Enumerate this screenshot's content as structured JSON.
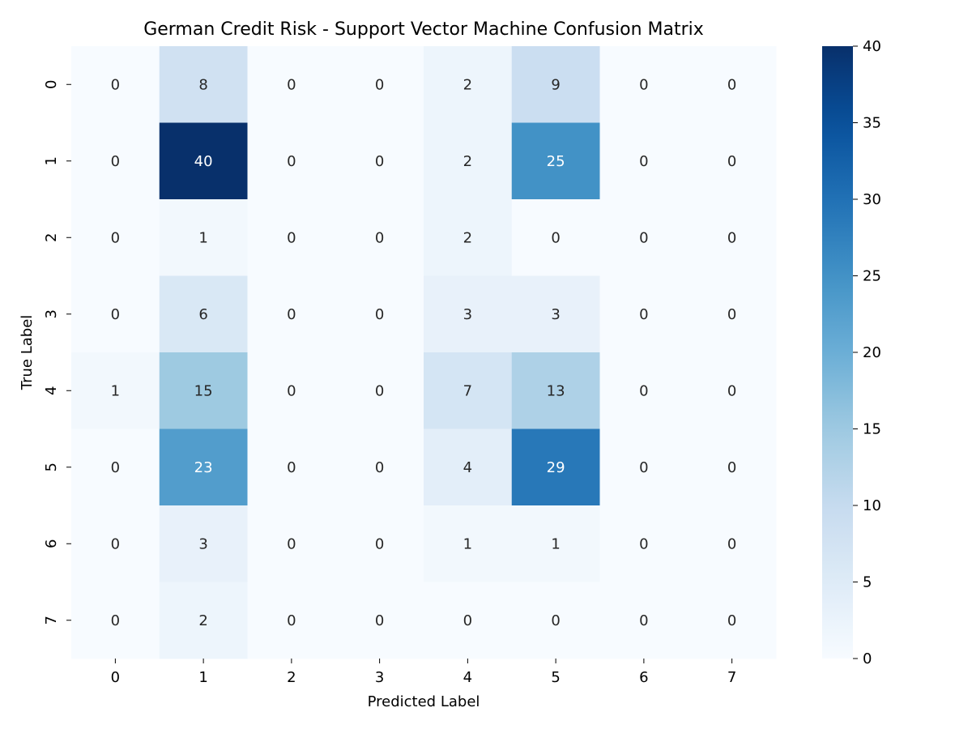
{
  "chart_data": {
    "type": "heatmap",
    "title": "German Credit Risk - Support Vector Machine Confusion Matrix",
    "xlabel": "Predicted Label",
    "ylabel": "True Label",
    "x_categories": [
      "0",
      "1",
      "2",
      "3",
      "4",
      "5",
      "6",
      "7"
    ],
    "y_categories": [
      "0",
      "1",
      "2",
      "3",
      "4",
      "5",
      "6",
      "7"
    ],
    "values": [
      [
        0,
        8,
        0,
        0,
        2,
        9,
        0,
        0
      ],
      [
        0,
        40,
        0,
        0,
        2,
        25,
        0,
        0
      ],
      [
        0,
        1,
        0,
        0,
        2,
        0,
        0,
        0
      ],
      [
        0,
        6,
        0,
        0,
        3,
        3,
        0,
        0
      ],
      [
        1,
        15,
        0,
        0,
        7,
        13,
        0,
        0
      ],
      [
        0,
        23,
        0,
        0,
        4,
        29,
        0,
        0
      ],
      [
        0,
        3,
        0,
        0,
        1,
        1,
        0,
        0
      ],
      [
        0,
        2,
        0,
        0,
        0,
        0,
        0,
        0
      ]
    ],
    "colorbar": {
      "range": [
        0,
        40
      ],
      "ticks": [
        "0",
        "5",
        "10",
        "15",
        "20",
        "25",
        "30",
        "35",
        "40"
      ],
      "colormap": "Blues"
    },
    "grid": false
  }
}
